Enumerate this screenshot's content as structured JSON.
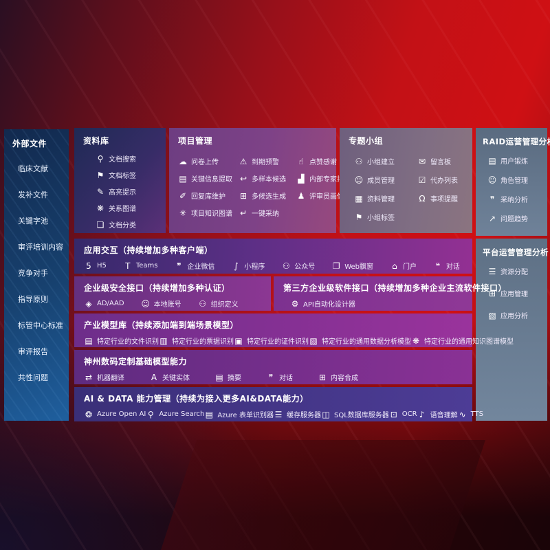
{
  "colors": {
    "background_red": "#c31116",
    "sidebar_blue": "#1f5f9e",
    "panel_purple": "#8c3793",
    "panel_indigo": "#4d3c96",
    "panel_slate": "#6f8299",
    "text": "#ffffff"
  },
  "left_panel": {
    "title": "外部文件",
    "items": [
      {
        "label": "临床文献"
      },
      {
        "label": "发补文件"
      },
      {
        "label": "关键字池"
      },
      {
        "label": "审评培训内容"
      },
      {
        "label": "竞争对手"
      },
      {
        "label": "指导原则"
      },
      {
        "label": "标管中心标准"
      },
      {
        "label": "审评报告"
      },
      {
        "label": "共性问题"
      }
    ]
  },
  "library_panel": {
    "title": "资料库",
    "items": [
      {
        "label": "文档搜索",
        "icon": "document-search-icon",
        "glyph": "⚲"
      },
      {
        "label": "文档标签",
        "icon": "document-tag-icon",
        "glyph": "⚑"
      },
      {
        "label": "高亮提示",
        "icon": "highlight-pen-icon",
        "glyph": "✎"
      },
      {
        "label": "关系图谱",
        "icon": "relation-graph-icon",
        "glyph": "❋"
      },
      {
        "label": "文档分类",
        "icon": "document-classify-icon",
        "glyph": "❏"
      }
    ]
  },
  "project_panel": {
    "title": "项目管理",
    "items": [
      {
        "label": "问卷上传",
        "icon": "cloud-upload-icon",
        "glyph": "☁"
      },
      {
        "label": "到期预警",
        "icon": "alarm-warning-icon",
        "glyph": "⚠"
      },
      {
        "label": "点赞感谢",
        "icon": "thumbs-up-icon",
        "glyph": "☝"
      },
      {
        "label": "关键信息提取",
        "icon": "key-info-extract-icon",
        "glyph": "▤"
      },
      {
        "label": "多样本候选",
        "icon": "multi-sample-icon",
        "glyph": "↩"
      },
      {
        "label": "内部专家排名",
        "icon": "expert-ranking-icon",
        "glyph": "▟"
      },
      {
        "label": "回复库维护",
        "icon": "reply-library-icon",
        "glyph": "✐"
      },
      {
        "label": "多候选生成",
        "icon": "multi-candidate-icon",
        "glyph": "⊞"
      },
      {
        "label": "评审员画像",
        "icon": "reviewer-profile-icon",
        "glyph": "♟"
      },
      {
        "label": "项目知识图谱",
        "icon": "project-knowledge-graph-icon",
        "glyph": "✳"
      },
      {
        "label": "一键采纳",
        "icon": "one-click-adopt-icon",
        "glyph": "↵"
      }
    ]
  },
  "group_panel": {
    "title": "专题小组",
    "items": [
      {
        "label": "小组建立",
        "icon": "group-create-icon",
        "glyph": "⚇"
      },
      {
        "label": "留言板",
        "icon": "message-board-icon",
        "glyph": "✉"
      },
      {
        "label": "成员管理",
        "icon": "member-manage-icon",
        "glyph": "☺"
      },
      {
        "label": "代办列表",
        "icon": "todo-list-icon",
        "glyph": "☑"
      },
      {
        "label": "资料管理",
        "icon": "material-manage-icon",
        "glyph": "▦"
      },
      {
        "label": "事项提醒",
        "icon": "reminder-bell-icon",
        "glyph": "Ω"
      },
      {
        "label": "小组标签",
        "icon": "group-tag-icon",
        "glyph": "⚑"
      }
    ]
  },
  "raid_panel": {
    "title": "RAID运营管理分析",
    "items": [
      {
        "label": "用户锻炼",
        "icon": "user-card-icon",
        "glyph": "▤"
      },
      {
        "label": "角色管理",
        "icon": "role-manage-icon",
        "glyph": "☺"
      },
      {
        "label": "采纳分析",
        "icon": "adoption-analysis-icon",
        "glyph": "❞"
      },
      {
        "label": "问题趋势",
        "icon": "issue-trend-icon",
        "glyph": "↗"
      }
    ]
  },
  "platform_panel": {
    "title": "平台运营管理分析",
    "items": [
      {
        "label": "资源分配",
        "icon": "resource-allocation-icon",
        "glyph": "☰"
      },
      {
        "label": "应用管理",
        "icon": "app-manage-icon",
        "glyph": "⊞"
      },
      {
        "label": "应用分析",
        "icon": "app-analysis-icon",
        "glyph": "▧"
      }
    ]
  },
  "interaction_row": {
    "title": "应用交互（持续增加多种客户端）",
    "items": [
      {
        "label": "H5",
        "icon": "h5-icon",
        "glyph": "5"
      },
      {
        "label": "Teams",
        "icon": "teams-icon",
        "glyph": "T"
      },
      {
        "label": "企业微信",
        "icon": "wechat-work-icon",
        "glyph": "❞"
      },
      {
        "label": "小程序",
        "icon": "miniprogram-icon",
        "glyph": "∫"
      },
      {
        "label": "公众号",
        "icon": "official-account-icon",
        "glyph": "⚇"
      },
      {
        "label": "Web飘窗",
        "icon": "web-popup-icon",
        "glyph": "❐"
      },
      {
        "label": "门户",
        "icon": "portal-icon",
        "glyph": "⌂"
      },
      {
        "label": "对话",
        "icon": "dialog-icon",
        "glyph": "❝"
      }
    ]
  },
  "security_row": {
    "title": "企业级安全接口（持续增加多种认证）",
    "items": [
      {
        "label": "AD/AAD",
        "icon": "ad-aad-icon",
        "glyph": "◈"
      },
      {
        "label": "本地账号",
        "icon": "local-account-icon",
        "glyph": "☺"
      },
      {
        "label": "组织定义",
        "icon": "org-define-icon",
        "glyph": "⚇"
      }
    ]
  },
  "thirdparty_row": {
    "title": "第三方企业级软件接口（持续增加多种企业主流软件接口）",
    "items": [
      {
        "label": "API自动化设计器",
        "icon": "api-designer-gear-icon",
        "glyph": "⚙"
      }
    ]
  },
  "industry_row": {
    "title": "产业模型库（持续添加端到端场景模型）",
    "items": [
      {
        "label": "特定行业的文件识别",
        "icon": "file-recognition-icon",
        "glyph": "▤"
      },
      {
        "label": "特定行业的票据识别",
        "icon": "receipt-recognition-icon",
        "glyph": "▥"
      },
      {
        "label": "特定行业的证件识别",
        "icon": "id-card-recognition-icon",
        "glyph": "▣"
      },
      {
        "label": "特定行业的通用数据分析模型",
        "icon": "data-analysis-model-icon",
        "glyph": "▧"
      },
      {
        "label": "特定行业的通用知识图谱模型",
        "icon": "knowledge-graph-model-icon",
        "glyph": "❋"
      }
    ]
  },
  "base_model_row": {
    "title": "神州数码定制基础模型能力",
    "items": [
      {
        "label": "机器翻译",
        "icon": "machine-translate-icon",
        "glyph": "⇄"
      },
      {
        "label": "关键实体",
        "icon": "key-entity-icon",
        "glyph": "A"
      },
      {
        "label": "摘要",
        "icon": "summary-icon",
        "glyph": "▤"
      },
      {
        "label": "对话",
        "icon": "chat-icon",
        "glyph": "❞"
      },
      {
        "label": "内容合成",
        "icon": "content-synthesis-icon",
        "glyph": "⊞"
      }
    ]
  },
  "ai_data_row": {
    "title": "AI & DATA 能力管理（持续为接入更多AI&DATA能力）",
    "items": [
      {
        "label": "Azure Open AI",
        "icon": "azure-openai-icon",
        "glyph": "❂"
      },
      {
        "label": "Azure Search",
        "icon": "azure-search-icon",
        "glyph": "⚲"
      },
      {
        "label": "Azure 表单识别器",
        "icon": "form-recognizer-icon",
        "glyph": "▤"
      },
      {
        "label": "缓存服务器",
        "icon": "cache-server-icon",
        "glyph": "☰"
      },
      {
        "label": "SQL数据库服务器",
        "icon": "sql-database-icon",
        "glyph": "◫"
      },
      {
        "label": "OCR",
        "icon": "ocr-icon",
        "glyph": "⊡"
      },
      {
        "label": "语音理解",
        "icon": "speech-understanding-icon",
        "glyph": "♪"
      },
      {
        "label": "TTS",
        "icon": "tts-icon",
        "glyph": "∿"
      }
    ]
  }
}
